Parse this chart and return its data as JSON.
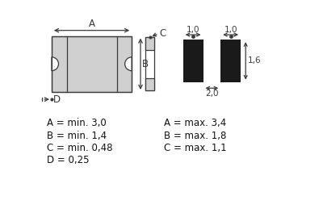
{
  "bg_color": "#ffffff",
  "line_color": "#3a3a3a",
  "fill_color": "#d0d0d0",
  "black_color": "#1a1a1a",
  "font_size_label": 8.5,
  "font_size_dim": 7.5,
  "labels_left": [
    "A = min. 3,0",
    "B = min. 1,4",
    "C = min. 0,48",
    "D = 0,25"
  ],
  "labels_right": [
    "A = max. 3,4",
    "B = max. 1,8",
    "C = max. 1,1",
    ""
  ],
  "lw": 0.9
}
